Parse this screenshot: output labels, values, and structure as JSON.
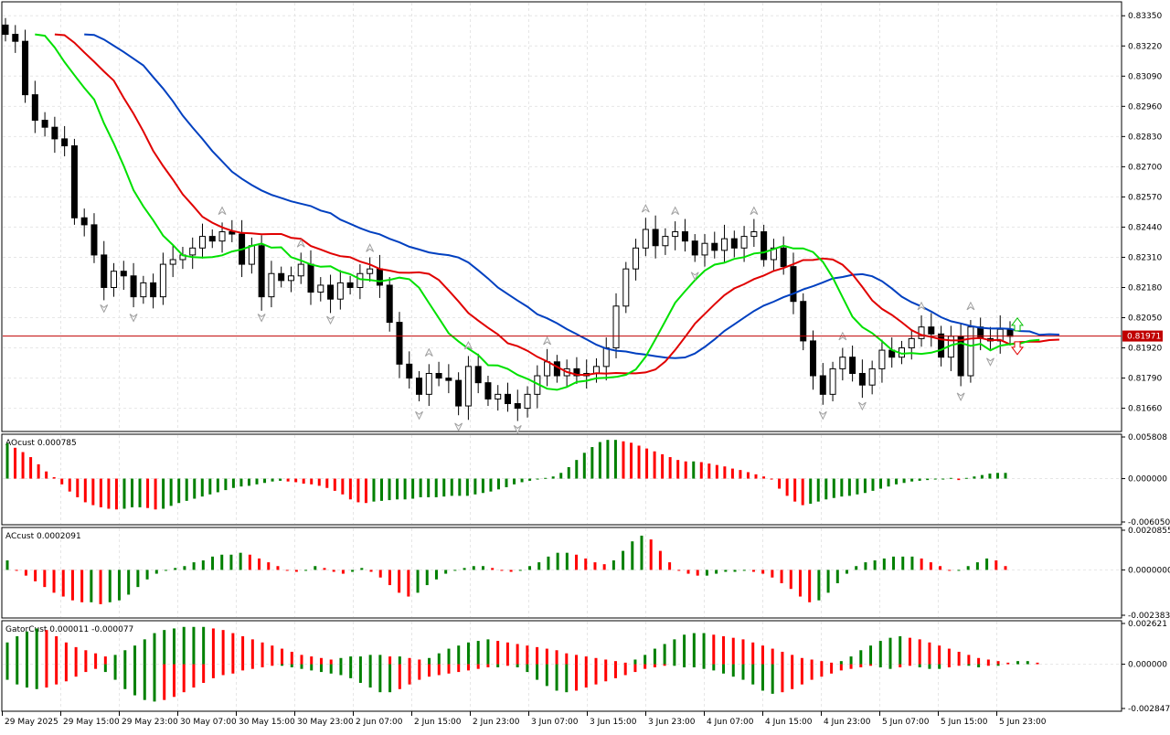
{
  "colors": {
    "background": "#ffffff",
    "grid": "#e6e6e6",
    "frame": "#000000",
    "bull_candle": "#ffffff",
    "bear_candle": "#000000",
    "alligator_jaw": "#0040c0",
    "alligator_teeth": "#e00000",
    "alligator_lips": "#00e000",
    "histogram_up": "#008000",
    "histogram_down": "#ff0000",
    "price_line": "#c00000",
    "price_label_bg": "#c00000",
    "fractal": "#a0a0a0"
  },
  "chart_data": [
    {
      "type": "candlestick",
      "panel": "main",
      "grid": true,
      "y_axis_side": "right",
      "ylim": [
        0.8156,
        0.8341
      ],
      "y_ticks": [
        "0.83350",
        "0.83220",
        "0.83090",
        "0.82960",
        "0.82830",
        "0.82700",
        "0.82570",
        "0.82440",
        "0.82310",
        "0.82180",
        "0.82050",
        "0.81920",
        "0.81790",
        "0.81660"
      ],
      "current_price": "0.81971",
      "close_series_estimate": [
        0.8327,
        0.8324,
        0.8301,
        0.829,
        0.8287,
        0.8282,
        0.8279,
        0.8248,
        0.8245,
        0.8232,
        0.8218,
        0.8225,
        0.8223,
        0.8214,
        0.822,
        0.8214,
        0.8228,
        0.823,
        0.8232,
        0.8235,
        0.824,
        0.8238,
        0.8242,
        0.8241,
        0.8228,
        0.8236,
        0.8214,
        0.8224,
        0.8221,
        0.8223,
        0.8228,
        0.8216,
        0.8219,
        0.8213,
        0.822,
        0.8218,
        0.8224,
        0.8226,
        0.8219,
        0.8203,
        0.8185,
        0.8179,
        0.8172,
        0.8181,
        0.8179,
        0.8178,
        0.8167,
        0.8184,
        0.8177,
        0.817,
        0.8172,
        0.8168,
        0.8166,
        0.8172,
        0.818,
        0.8186,
        0.818,
        0.8183,
        0.818,
        0.8181,
        0.8184,
        0.8192,
        0.821,
        0.8226,
        0.8235,
        0.8243,
        0.8236,
        0.824,
        0.8242,
        0.8238,
        0.8232,
        0.8237,
        0.8234,
        0.8239,
        0.8235,
        0.824,
        0.8242,
        0.823,
        0.8235,
        0.8227,
        0.8212,
        0.8195,
        0.818,
        0.8172,
        0.8183,
        0.8188,
        0.8181,
        0.8176,
        0.8183,
        0.8191,
        0.8188,
        0.8192,
        0.8196,
        0.8201,
        0.8198,
        0.8188,
        0.8197,
        0.818,
        0.8201,
        0.8196,
        0.8195,
        0.82,
        0.8197
      ],
      "alligator": {
        "jaw": "blue",
        "teeth": "red",
        "lips": "green"
      },
      "fractal_arrows": true
    },
    {
      "type": "histogram",
      "panel": "AOcust",
      "title": "AOcust 0.000785",
      "y_ticks": [
        "0.005808",
        "0.000000",
        "-0.006050"
      ],
      "ylim": [
        -0.00605,
        0.005808
      ],
      "values_estimate": [
        0.0049,
        0.0043,
        0.0037,
        0.003,
        0.002,
        0.001,
        0.0002,
        -0.0008,
        -0.0018,
        -0.0026,
        -0.0033,
        -0.0037,
        -0.004,
        -0.0042,
        -0.0043,
        -0.0042,
        -0.004,
        -0.004,
        -0.0041,
        -0.0043,
        -0.0042,
        -0.0038,
        -0.0034,
        -0.0031,
        -0.0028,
        -0.0025,
        -0.0022,
        -0.0019,
        -0.0016,
        -0.0013,
        -0.0011,
        -0.001,
        -0.0008,
        -0.0006,
        -0.0004,
        -0.0003,
        -0.0004,
        -0.0005,
        -0.0007,
        -0.0008,
        -0.001,
        -0.0013,
        -0.0017,
        -0.0022,
        -0.0029,
        -0.0033,
        -0.0034,
        -0.0032,
        -0.0031,
        -0.003,
        -0.0029,
        -0.0029,
        -0.0028,
        -0.0026,
        -0.0026,
        -0.0026,
        -0.0025,
        -0.0024,
        -0.0024,
        -0.0024,
        -0.0022,
        -0.002,
        -0.0018,
        -0.0015,
        -0.0012,
        -0.0008,
        -0.0005,
        -0.0003,
        -0.0001,
        0.0001,
        0.0003,
        0.0008,
        0.0016,
        0.0026,
        0.0036,
        0.0044,
        0.0051,
        0.0054,
        0.0054,
        0.0052,
        0.005,
        0.0046,
        0.0042,
        0.0038,
        0.0034,
        0.003,
        0.0026,
        0.0024,
        0.0024,
        0.0023,
        0.0021,
        0.0019,
        0.0017,
        0.0014,
        0.0012,
        0.0009,
        0.0006,
        0.0003,
        0.0,
        -0.0014,
        -0.0024,
        -0.0032,
        -0.0037,
        -0.0035,
        -0.0032,
        -0.0029,
        -0.0027,
        -0.0025,
        -0.0024,
        -0.0022,
        -0.002,
        -0.0017,
        -0.0014,
        -0.0011,
        -0.0008,
        -0.0006,
        -0.0004,
        -0.0003,
        -0.0002,
        -0.0001,
        0.0,
        0.0001,
        -0.0002,
        0.0001,
        0.0003,
        0.0005,
        0.0007,
        0.0008,
        0.0008
      ],
      "colors_up_down": true
    },
    {
      "type": "histogram",
      "panel": "ACcust",
      "title": "ACcust 0.0002091",
      "y_ticks": [
        "0.0020855",
        "0.0000000",
        "-0.0023832"
      ],
      "ylim": [
        -0.0023832,
        0.0020855
      ],
      "values_estimate": [
        0.0005,
        0.0,
        -0.0003,
        -0.0006,
        -0.0009,
        -0.0012,
        -0.0014,
        -0.0016,
        -0.0017,
        -0.0017,
        -0.0018,
        -0.0017,
        -0.0016,
        -0.0013,
        -0.0009,
        -0.0005,
        -0.0002,
        0.0,
        0.0001,
        0.0002,
        0.0004,
        0.0005,
        0.0007,
        0.0008,
        0.0008,
        0.0009,
        0.0008,
        0.0006,
        0.0004,
        0.0002,
        0.0,
        -0.0001,
        0.0,
        0.0002,
        0.0001,
        -0.0001,
        -0.0002,
        -0.0001,
        0.0001,
        -0.0001,
        -0.0004,
        -0.0008,
        -0.0012,
        -0.0014,
        -0.0012,
        -0.0008,
        -0.0005,
        -0.0002,
        0.0,
        0.0001,
        0.0002,
        0.0002,
        0.0001,
        0.0,
        -0.0001,
        0.0,
        0.0002,
        0.0004,
        0.0007,
        0.0009,
        0.0009,
        0.0008,
        0.0006,
        0.0004,
        0.0003,
        0.0005,
        0.001,
        0.0015,
        0.0018,
        0.0016,
        0.001,
        0.0004,
        0.0,
        -0.0002,
        -0.0003,
        -0.0003,
        -0.0002,
        -0.0001,
        -0.0001,
        0.0,
        -0.0001,
        -0.0002,
        -0.0004,
        -0.0007,
        -0.001,
        -0.0014,
        -0.0017,
        -0.0016,
        -0.0012,
        -0.0007,
        -0.0002,
        0.0002,
        0.0004,
        0.0005,
        0.0006,
        0.0007,
        0.0007,
        0.0007,
        0.0006,
        0.0004,
        0.0002,
        0.0,
        0.0,
        0.0002,
        0.0004,
        0.0006,
        0.0005,
        0.0002
      ],
      "colors_up_down": true
    },
    {
      "type": "gator_histogram",
      "panel": "GatorCust",
      "title": "GatorCust 0.000011 -0.000077",
      "y_ticks": [
        "0.002621",
        "0.000000",
        "-0.002847"
      ],
      "ylim": [
        -0.002847,
        0.002621
      ],
      "upper_estimate": [
        0.0014,
        0.0018,
        0.0021,
        0.0023,
        0.0022,
        0.0018,
        0.0014,
        0.0011,
        0.0009,
        0.0007,
        0.0005,
        0.0006,
        0.0009,
        0.0012,
        0.0016,
        0.002,
        0.0022,
        0.0023,
        0.0024,
        0.0024,
        0.0024,
        0.0023,
        0.0022,
        0.002,
        0.0018,
        0.0016,
        0.0014,
        0.0012,
        0.001,
        0.0008,
        0.0006,
        0.0005,
        0.0004,
        0.0003,
        0.0004,
        0.0005,
        0.0005,
        0.0006,
        0.0006,
        0.0005,
        0.0005,
        0.0004,
        0.0003,
        0.0004,
        0.0007,
        0.001,
        0.0012,
        0.0014,
        0.0015,
        0.0016,
        0.0015,
        0.0014,
        0.0013,
        0.0012,
        0.0011,
        0.001,
        0.0009,
        0.0007,
        0.0006,
        0.0005,
        0.0004,
        0.0003,
        0.0002,
        0.0001,
        0.0003,
        0.0006,
        0.001,
        0.0013,
        0.0016,
        0.0019,
        0.002,
        0.002,
        0.0019,
        0.0018,
        0.0017,
        0.0016,
        0.0014,
        0.0012,
        0.001,
        0.0008,
        0.0006,
        0.0004,
        0.0003,
        0.0002,
        0.0001,
        0.0002,
        0.0005,
        0.0009,
        0.0012,
        0.0015,
        0.0017,
        0.0018,
        0.0017,
        0.0016,
        0.0014,
        0.0012,
        0.001,
        0.0008,
        0.0006,
        0.0004,
        0.0003,
        0.0002,
        0.0001,
        0.0002,
        0.0002,
        0.0001
      ],
      "lower_estimate": [
        -0.001,
        -0.0013,
        -0.0015,
        -0.0016,
        -0.0015,
        -0.0013,
        -0.0011,
        -0.0008,
        -0.0005,
        -0.0003,
        -0.0005,
        -0.001,
        -0.0016,
        -0.002,
        -0.0023,
        -0.0024,
        -0.0023,
        -0.0021,
        -0.0018,
        -0.0015,
        -0.0012,
        -0.0009,
        -0.0007,
        -0.0006,
        -0.0004,
        -0.0003,
        -0.0002,
        -0.0001,
        -0.0001,
        -0.0002,
        -0.0003,
        -0.0004,
        -0.0005,
        -0.0006,
        -0.0007,
        -0.0009,
        -0.0012,
        -0.0015,
        -0.0018,
        -0.0018,
        -0.0016,
        -0.0013,
        -0.001,
        -0.0008,
        -0.0007,
        -0.0006,
        -0.0005,
        -0.0004,
        -0.0003,
        -0.0002,
        -0.0002,
        -0.0001,
        -0.0002,
        -0.0005,
        -0.001,
        -0.0014,
        -0.0017,
        -0.0018,
        -0.0017,
        -0.0015,
        -0.0013,
        -0.0011,
        -0.0009,
        -0.0007,
        -0.0005,
        -0.0003,
        -0.0002,
        -0.0001,
        -0.0001,
        -0.0002,
        -0.0002,
        -0.0003,
        -0.0004,
        -0.0006,
        -0.0008,
        -0.001,
        -0.0013,
        -0.0017,
        -0.0019,
        -0.0018,
        -0.0016,
        -0.0013,
        -0.001,
        -0.0008,
        -0.0006,
        -0.0004,
        -0.0003,
        -0.0002,
        -0.0001,
        -0.0002,
        -0.0003,
        -0.0002,
        -0.0001,
        -0.0002,
        -0.0003,
        -0.0003,
        -0.0002,
        -0.0001,
        -0.0001,
        -0.0002,
        -0.0001,
        -0.0001
      ]
    }
  ],
  "x_axis_labels": [
    "29 May 2025",
    "29 May 15:00",
    "29 May 23:00",
    "30 May 07:00",
    "30 May 15:00",
    "30 May 23:00",
    "2 Jun 07:00",
    "2 Jun 15:00",
    "2 Jun 23:00",
    "3 Jun 07:00",
    "3 Jun 15:00",
    "3 Jun 23:00",
    "4 Jun 07:00",
    "4 Jun 15:00",
    "4 Jun 23:00",
    "5 Jun 07:00",
    "5 Jun 15:00",
    "5 Jun 23:00"
  ]
}
